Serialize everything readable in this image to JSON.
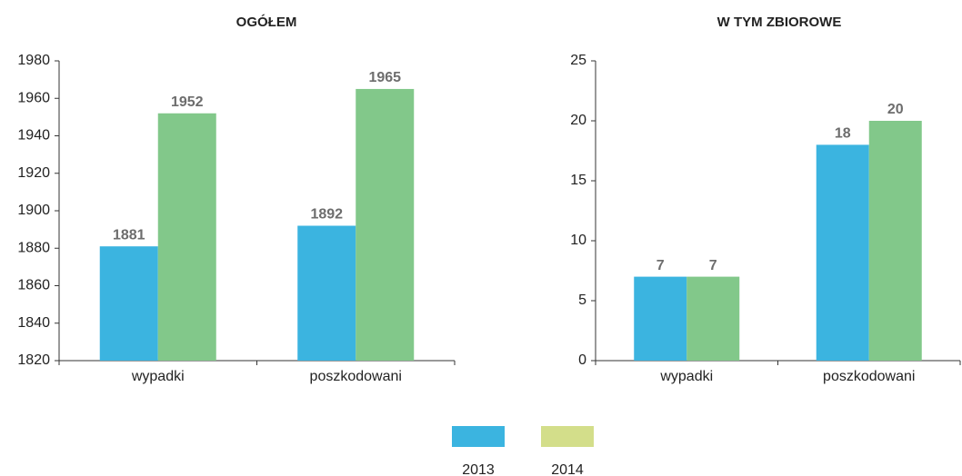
{
  "chart_data": [
    {
      "type": "bar",
      "title": "OGÓŁEM",
      "categories": [
        "wypadki",
        "poszkodowani"
      ],
      "series": [
        {
          "name": "2013",
          "color": "#3bb4e0",
          "legend_color": "#3bb4e0",
          "values": [
            1881,
            1892
          ]
        },
        {
          "name": "2014",
          "color": "#82c88a",
          "legend_color": "#d3de8a",
          "values": [
            1952,
            1965
          ]
        }
      ],
      "ylim": [
        1820,
        1980
      ],
      "yticks": [
        1820,
        1840,
        1860,
        1880,
        1900,
        1920,
        1940,
        1960,
        1980
      ]
    },
    {
      "type": "bar",
      "title": "W TYM ZBIOROWE",
      "categories": [
        "wypadki",
        "poszkodowani"
      ],
      "series": [
        {
          "name": "2013",
          "color": "#3bb4e0",
          "legend_color": "#3bb4e0",
          "values": [
            7,
            18
          ]
        },
        {
          "name": "2014",
          "color": "#82c88a",
          "legend_color": "#d3de8a",
          "values": [
            7,
            20
          ]
        }
      ],
      "ylim": [
        0,
        25
      ],
      "yticks": [
        0,
        5,
        10,
        15,
        20,
        25
      ]
    }
  ]
}
